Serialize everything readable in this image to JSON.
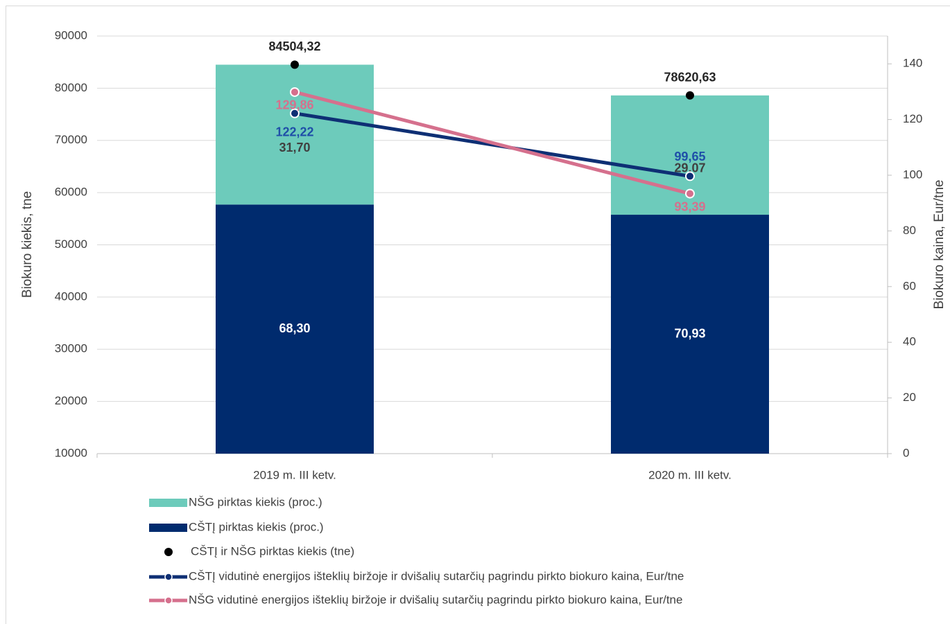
{
  "chart_data": {
    "type": "bar",
    "categories": [
      "2019 m. III ketv.",
      "2020 m. III ketv."
    ],
    "y_label": "Biokuro kiekis, tne",
    "y2_label": "Biokuro kaina, Eur/tne",
    "ylim": [
      10000,
      90000
    ],
    "yticks": [
      10000,
      20000,
      30000,
      40000,
      50000,
      60000,
      70000,
      80000,
      90000
    ],
    "y2lim": [
      0,
      150
    ],
    "y2ticks": [
      0,
      20,
      40,
      60,
      80,
      100,
      120,
      140
    ],
    "grid": true,
    "series": [
      {
        "name": "NŠG pirktas kiekis (proc.)",
        "type": "bar",
        "color": "#6dcbbb",
        "values": [
          31.7,
          29.07
        ],
        "value_labels": [
          "31,70",
          "29,07"
        ]
      },
      {
        "name": "CŠTĮ pirktas kiekis (proc.)",
        "type": "bar",
        "color": "#002b6e",
        "values": [
          68.3,
          70.93
        ],
        "value_labels": [
          "68,30",
          "70,93"
        ]
      },
      {
        "name": "CŠTĮ ir NŠG pirktas kiekis (tne)",
        "type": "scatter",
        "color": "#000000",
        "values": [
          84504.32,
          78620.63
        ],
        "value_labels": [
          "84504,32",
          "78620,63"
        ]
      },
      {
        "name": "CŠTĮ  vidutinė energijos išteklių biržoje ir dvišalių sutarčių pagrindu pirkto biokuro kaina, Eur/tne",
        "type": "line",
        "axis": "y2",
        "color": "#0e2f74",
        "values": [
          122.22,
          99.65
        ],
        "value_labels": [
          "122,22",
          "99,65"
        ]
      },
      {
        "name": "NŠG  vidutinė energijos išteklių biržoje ir dvišalių sutarčių pagrindu pirkto biokuro kaina, Eur/tne",
        "type": "line",
        "axis": "y2",
        "color": "#d5708d",
        "values": [
          129.86,
          93.39
        ],
        "value_labels": [
          "129,86",
          "93,39"
        ]
      }
    ]
  }
}
